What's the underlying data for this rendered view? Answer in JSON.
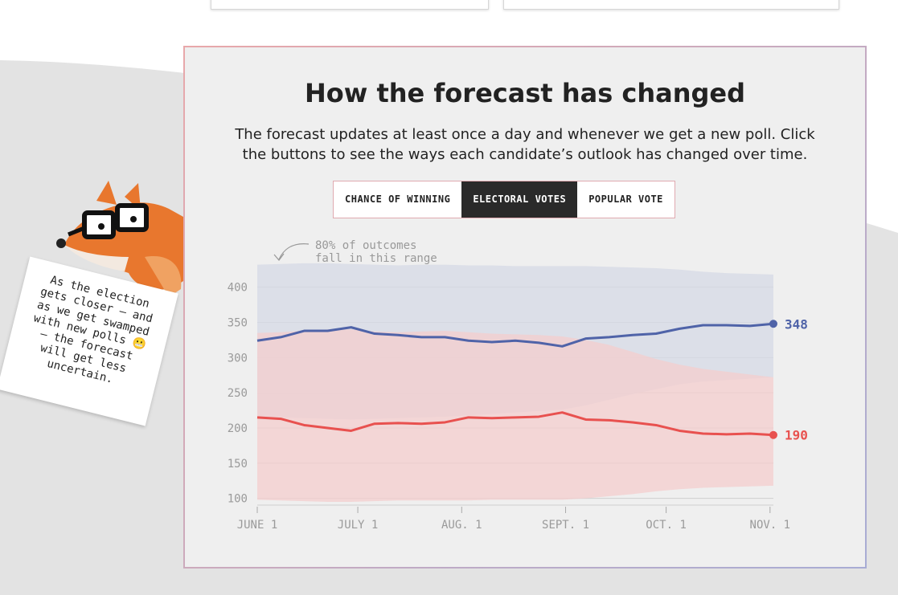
{
  "header": {
    "title": "How the forecast has changed",
    "subtitle": [
      "The forecast updates at least once a day and whenever we get a new poll. Click",
      "the buttons to see the ways each candidate’s outlook has changed over time."
    ],
    "buttons": [
      {
        "label": "CHANCE OF WINNING",
        "active": false
      },
      {
        "label": "ELECTORAL VOTES",
        "active": true
      },
      {
        "label": "POPULAR VOTE",
        "active": false
      }
    ]
  },
  "note": {
    "lines": [
      "As the election",
      "gets closer — and",
      "as we get swamped",
      "with new polls 😬",
      "— the forecast",
      "will get less",
      "uncertain."
    ]
  },
  "chart_data": {
    "type": "line",
    "annotation": [
      "80% of outcomes",
      "fall in this range"
    ],
    "x": [
      0,
      7,
      14,
      21,
      28,
      35,
      42,
      49,
      56,
      63,
      70,
      77,
      84,
      91,
      98,
      105,
      112,
      119,
      126,
      133,
      140,
      147,
      154
    ],
    "xlim": [
      0,
      154
    ],
    "xticks": [
      {
        "value": 0,
        "label": "JUNE 1"
      },
      {
        "value": 30,
        "label": "JULY 1"
      },
      {
        "value": 61,
        "label": "AUG. 1"
      },
      {
        "value": 92,
        "label": "SEPT. 1"
      },
      {
        "value": 122,
        "label": "OCT. 1"
      },
      {
        "value": 153,
        "label": "NOV. 1"
      }
    ],
    "ylim": [
      95,
      435
    ],
    "yticks": [
      100,
      150,
      200,
      250,
      300,
      350,
      400
    ],
    "grid": true,
    "series": [
      {
        "color": "#4f63a8",
        "band_color": "#d5d9e6",
        "values": [
          324,
          329,
          338,
          338,
          343,
          334,
          332,
          329,
          329,
          324,
          322,
          324,
          321,
          316,
          327,
          329,
          332,
          334,
          341,
          346,
          346,
          345,
          348
        ],
        "high": [
          432,
          433,
          434,
          434,
          433,
          432,
          431,
          432,
          432,
          431,
          431,
          430,
          430,
          430,
          430,
          429,
          428,
          427,
          425,
          422,
          420,
          419,
          418
        ],
        "low": [
          215,
          215,
          214,
          213,
          212,
          213,
          214,
          215,
          216,
          218,
          220,
          222,
          224,
          226,
          232,
          240,
          248,
          255,
          262,
          266,
          268,
          270,
          272
        ]
      },
      {
        "color": "#e8514f",
        "band_color": "#f4cdcd",
        "values": [
          215,
          213,
          204,
          200,
          196,
          206,
          207,
          206,
          208,
          215,
          214,
          215,
          216,
          222,
          212,
          211,
          208,
          204,
          196,
          192,
          191,
          192,
          190
        ],
        "high": [
          335,
          336,
          338,
          340,
          340,
          337,
          336,
          337,
          338,
          336,
          334,
          333,
          332,
          330,
          325,
          318,
          308,
          298,
          290,
          284,
          280,
          276,
          272
        ],
        "low": [
          98,
          97,
          96,
          95,
          95,
          96,
          97,
          97,
          97,
          97,
          98,
          98,
          98,
          98,
          100,
          103,
          106,
          110,
          113,
          115,
          116,
          117,
          118
        ]
      }
    ]
  }
}
